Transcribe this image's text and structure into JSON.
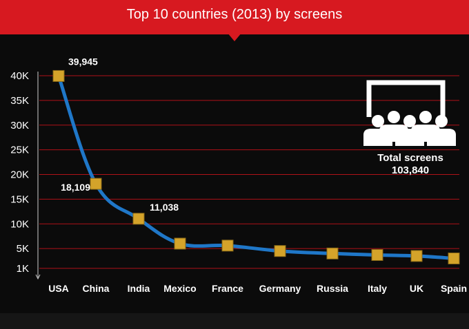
{
  "title": "Top 10 countries (2013) by screens",
  "colors": {
    "banner": "#d71920",
    "line": "#1f77c8",
    "marker": "#d4a32a",
    "grid": "#b01218",
    "background": "#0b0b0b",
    "text": "#ffffff"
  },
  "total": {
    "label": "Total screens",
    "value": "103,840",
    "icon": "cinema-audience-icon"
  },
  "chart_data": {
    "type": "line",
    "title": "Top 10 countries (2013) by screens",
    "categories": [
      "USA",
      "China",
      "India",
      "Mexico",
      "France",
      "Germany",
      "Russia",
      "Italy",
      "UK",
      "Spain"
    ],
    "series": [
      {
        "values": [
          39945,
          18109,
          11038,
          6000,
          5600,
          4500,
          4000,
          3700,
          3500,
          3000
        ]
      }
    ],
    "data_labels": [
      {
        "index": 0,
        "text": "39,945"
      },
      {
        "index": 1,
        "text": "18,109"
      },
      {
        "index": 2,
        "text": "11,038"
      }
    ],
    "y_ticks": [
      {
        "value": 40000,
        "label": "40K"
      },
      {
        "value": 35000,
        "label": "35K"
      },
      {
        "value": 30000,
        "label": "30K"
      },
      {
        "value": 25000,
        "label": "25K"
      },
      {
        "value": 20000,
        "label": "20K"
      },
      {
        "value": 15000,
        "label": "15K"
      },
      {
        "value": 10000,
        "label": "10K"
      },
      {
        "value": 5000,
        "label": "5K"
      },
      {
        "value": 1000,
        "label": "1K"
      }
    ],
    "ylim": [
      0,
      40000
    ],
    "grid": true,
    "legend": "none"
  }
}
